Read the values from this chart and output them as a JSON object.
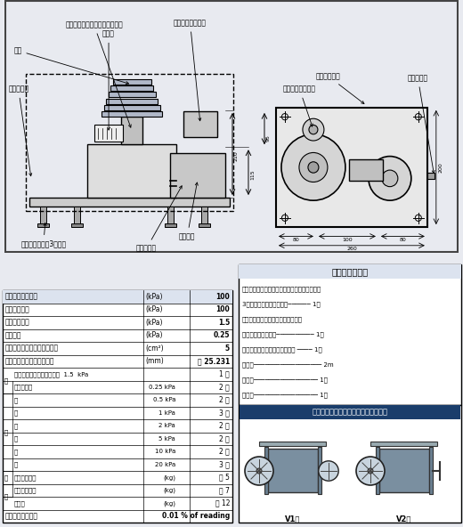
{
  "bg_color": "#e8eaf0",
  "table_bg": "#ffffff",
  "table_header_bg": "#dce3f0",
  "left_table_rows": [
    {
      "col1": "圧　　　　　　力",
      "col2": "(kPa)",
      "col3": "100",
      "indent": 0,
      "bold_col1": true,
      "bold_col3": true
    },
    {
      "col1": "最大測定圧力",
      "col2": "(kPa)",
      "col3": "100",
      "indent": 0,
      "bold_col1": false,
      "bold_col3": true
    },
    {
      "col1": "最小測定圧力",
      "col2": "(kPa)",
      "col3": "1.5",
      "indent": 0,
      "bold_col1": false,
      "bold_col3": true
    },
    {
      "col1": "最小区分",
      "col2": "(kPa)",
      "col3": "0.25",
      "indent": 0,
      "bold_col1": false,
      "bold_col3": true
    },
    {
      "col1": "ピストン・シリンダの断面積",
      "col2": "(cm²)",
      "col3": "5",
      "indent": 0,
      "bold_col1": false,
      "bold_col3": true
    },
    {
      "col1": "ピストン・シリンダの直径",
      "col2": "(mm)",
      "col3": "約 25.231",
      "indent": 0,
      "bold_col1": false,
      "bold_col3": true
    },
    {
      "col1": "ピストン・シリンダ表示量  1.5  kPa",
      "col2": "",
      "col3": "1 個",
      "indent": 1,
      "bold_col1": false,
      "bold_col3": false
    },
    {
      "col1": "重錘表示量",
      "col2": "0.25 kPa",
      "col3": "2 個",
      "indent": 1,
      "bold_col1": false,
      "bold_col3": false
    },
    {
      "col1": "〃",
      "col2": "0.5 kPa",
      "col3": "2 個",
      "indent": 1,
      "bold_col1": false,
      "bold_col3": false
    },
    {
      "col1": "〃",
      "col2": "1 kPa",
      "col3": "3 個",
      "indent": 1,
      "bold_col1": false,
      "bold_col3": false
    },
    {
      "col1": "〃",
      "col2": "2 kPa",
      "col3": "2 個",
      "indent": 1,
      "bold_col1": false,
      "bold_col3": false
    },
    {
      "col1": "〃",
      "col2": "5 kPa",
      "col3": "2 個",
      "indent": 1,
      "bold_col1": false,
      "bold_col3": false
    },
    {
      "col1": "〃",
      "col2": "10 kPa",
      "col3": "2 個",
      "indent": 1,
      "bold_col1": false,
      "bold_col3": false
    },
    {
      "col1": "〃",
      "col2": "20 kPa",
      "col3": "3 個",
      "indent": 1,
      "bold_col1": false,
      "bold_col3": false
    },
    {
      "col1": "重錘の総質量",
      "col2": "(kg)",
      "col3": "約 5",
      "indent": 1,
      "bold_col1": false,
      "bold_col3": false
    },
    {
      "col1": "本体の総質量",
      "col2": "(kg)",
      "col3": "約 7",
      "indent": 1,
      "bold_col1": false,
      "bold_col3": false
    },
    {
      "col1": "総質量",
      "col2": "(kg)",
      "col3": "約 12",
      "indent": 1,
      "bold_col1": false,
      "bold_col3": false
    },
    {
      "col1": "精　　　　　　度",
      "col2": "",
      "col3": "0.01 % of reading",
      "indent": 0,
      "bold_col1": true,
      "bold_col3": true
    }
  ],
  "right_accessories_title": "付　　属　　品",
  "right_accessories_lines": [
    "付属品及び重錘は格納箱に収納してあります。",
    "3方継手（ゴム管接続用）────── 1個",
    "ピストン・シリンダクリーニング用",
    "ペーパー巻き付け具────────── 1個",
    "ピストン・シリンダ用ペーパー ──── 1式",
    "ゴム管────────────────── 2m",
    "洗浄液───────────────── 1本",
    "格納箱───────────────── 1箱"
  ],
  "right_pump_title": "推奨する圧力源（手動加減圧ポンプ）",
  "pump_labels": [
    "V1型",
    "V2型"
  ]
}
